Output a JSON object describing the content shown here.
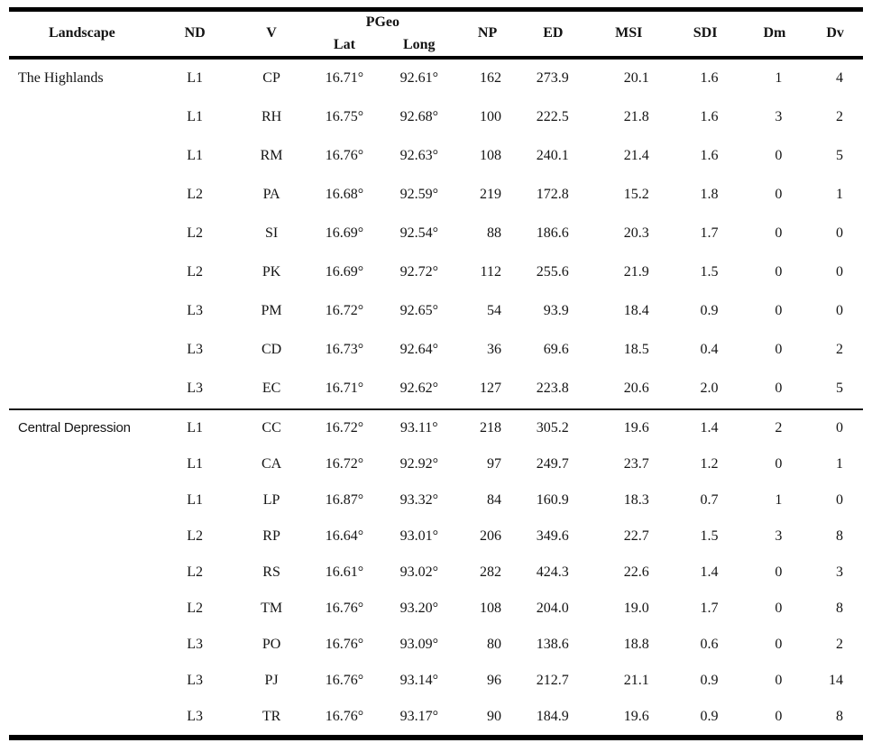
{
  "table": {
    "headers": {
      "landscape": "Landscape",
      "nd": "ND",
      "v": "V",
      "pgeo": "PGeo",
      "lat": "Lat",
      "long": "Long",
      "np": "NP",
      "ed": "ED",
      "msi": "MSI",
      "sdi": "SDI",
      "dm": "Dm",
      "dv": "Dv"
    },
    "sections": [
      {
        "label": "The Highlands",
        "rows": [
          {
            "nd": "L1",
            "v": "CP",
            "lat": "16.71°",
            "long": "92.61°",
            "np": "162",
            "ed": "273.9",
            "msi": "20.1",
            "sdi": "1.6",
            "dm": "1",
            "dv": "4"
          },
          {
            "nd": "L1",
            "v": "RH",
            "lat": "16.75°",
            "long": "92.68°",
            "np": "100",
            "ed": "222.5",
            "msi": "21.8",
            "sdi": "1.6",
            "dm": "3",
            "dv": "2"
          },
          {
            "nd": "L1",
            "v": "RM",
            "lat": "16.76°",
            "long": "92.63°",
            "np": "108",
            "ed": "240.1",
            "msi": "21.4",
            "sdi": "1.6",
            "dm": "0",
            "dv": "5"
          },
          {
            "nd": "L2",
            "v": "PA",
            "lat": "16.68°",
            "long": "92.59°",
            "np": "219",
            "ed": "172.8",
            "msi": "15.2",
            "sdi": "1.8",
            "dm": "0",
            "dv": "1"
          },
          {
            "nd": "L2",
            "v": "SI",
            "lat": "16.69°",
            "long": "92.54°",
            "np": "88",
            "ed": "186.6",
            "msi": "20.3",
            "sdi": "1.7",
            "dm": "0",
            "dv": "0"
          },
          {
            "nd": "L2",
            "v": "PK",
            "lat": "16.69°",
            "long": "92.72°",
            "np": "112",
            "ed": "255.6",
            "msi": "21.9",
            "sdi": "1.5",
            "dm": "0",
            "dv": "0"
          },
          {
            "nd": "L3",
            "v": "PM",
            "lat": "16.72°",
            "long": "92.65°",
            "np": "54",
            "ed": "93.9",
            "msi": "18.4",
            "sdi": "0.9",
            "dm": "0",
            "dv": "0"
          },
          {
            "nd": "L3",
            "v": "CD",
            "lat": "16.73°",
            "long": "92.64°",
            "np": "36",
            "ed": "69.6",
            "msi": "18.5",
            "sdi": "0.4",
            "dm": "0",
            "dv": "2"
          },
          {
            "nd": "L3",
            "v": "EC",
            "lat": "16.71°",
            "long": "92.62°",
            "np": "127",
            "ed": "223.8",
            "msi": "20.6",
            "sdi": "2.0",
            "dm": "0",
            "dv": "5"
          }
        ]
      },
      {
        "label": "Central Depression",
        "rows": [
          {
            "nd": "L1",
            "v": "CC",
            "lat": "16.72°",
            "long": "93.11°",
            "np": "218",
            "ed": "305.2",
            "msi": "19.6",
            "sdi": "1.4",
            "dm": "2",
            "dv": "0"
          },
          {
            "nd": "L1",
            "v": "CA",
            "lat": "16.72°",
            "long": "92.92°",
            "np": "97",
            "ed": "249.7",
            "msi": "23.7",
            "sdi": "1.2",
            "dm": "0",
            "dv": "1"
          },
          {
            "nd": "L1",
            "v": "LP",
            "lat": "16.87°",
            "long": "93.32°",
            "np": "84",
            "ed": "160.9",
            "msi": "18.3",
            "sdi": "0.7",
            "dm": "1",
            "dv": "0"
          },
          {
            "nd": "L2",
            "v": "RP",
            "lat": "16.64°",
            "long": "93.01°",
            "np": "206",
            "ed": "349.6",
            "msi": "22.7",
            "sdi": "1.5",
            "dm": "3",
            "dv": "8"
          },
          {
            "nd": "L2",
            "v": "RS",
            "lat": "16.61°",
            "long": "93.02°",
            "np": "282",
            "ed": "424.3",
            "msi": "22.6",
            "sdi": "1.4",
            "dm": "0",
            "dv": "3"
          },
          {
            "nd": "L2",
            "v": "TM",
            "lat": "16.76°",
            "long": "93.20°",
            "np": "108",
            "ed": "204.0",
            "msi": "19.0",
            "sdi": "1.7",
            "dm": "0",
            "dv": "8"
          },
          {
            "nd": "L3",
            "v": "PO",
            "lat": "16.76°",
            "long": "93.09°",
            "np": "80",
            "ed": "138.6",
            "msi": "18.8",
            "sdi": "0.6",
            "dm": "0",
            "dv": "2"
          },
          {
            "nd": "L3",
            "v": "PJ",
            "lat": "16.76°",
            "long": "93.14°",
            "np": "96",
            "ed": "212.7",
            "msi": "21.1",
            "sdi": "0.9",
            "dm": "0",
            "dv": "14"
          },
          {
            "nd": "L3",
            "v": "TR",
            "lat": "16.76°",
            "long": "93.17°",
            "np": "90",
            "ed": "184.9",
            "msi": "19.6",
            "sdi": "0.9",
            "dm": "0",
            "dv": "8"
          }
        ]
      }
    ]
  }
}
